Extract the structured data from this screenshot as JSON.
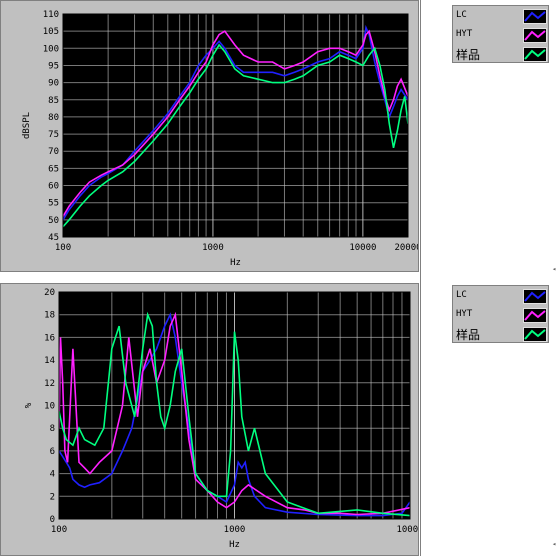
{
  "colors": {
    "lc": "#2020ff",
    "hyt": "#ff20ff",
    "sample": "#00ff80",
    "plot_bg": "#000000",
    "grid": "#c8c8c8",
    "panel": "#c0c0c0"
  },
  "legend_top": [
    {
      "label": "LC",
      "color": "#2020ff",
      "icon": "line-swatch-icon"
    },
    {
      "label": "HYT",
      "color": "#ff20ff",
      "icon": "line-swatch-icon"
    },
    {
      "label": "样品",
      "color": "#00ff80",
      "icon": "line-swatch-icon"
    }
  ],
  "legend_bottom": [
    {
      "label": "LC",
      "color": "#2020ff",
      "icon": "line-swatch-icon"
    },
    {
      "label": "HYT",
      "color": "#ff20ff",
      "icon": "line-swatch-icon"
    },
    {
      "label": "样品",
      "color": "#00ff80",
      "icon": "line-swatch-icon"
    }
  ],
  "chart_data": [
    {
      "type": "line",
      "xlabel": "Hz",
      "ylabel": "dBSPL",
      "xscale": "log",
      "xlim": [
        100,
        20000
      ],
      "ylim": [
        45,
        110
      ],
      "x_ticks": [
        "100",
        "1000",
        "10000",
        "20000"
      ],
      "y_ticks": [
        "45",
        "50",
        "55",
        "60",
        "65",
        "70",
        "75",
        "80",
        "85",
        "90",
        "95",
        "100",
        "105",
        "110"
      ],
      "grid": true,
      "legend": "right",
      "series": [
        {
          "name": "LC",
          "color": "#2020ff",
          "x": [
            100,
            110,
            130,
            150,
            180,
            200,
            250,
            300,
            400,
            500,
            600,
            700,
            800,
            900,
            1000,
            1100,
            1200,
            1400,
            1600,
            2000,
            2500,
            3000,
            3500,
            4000,
            5000,
            6000,
            7000,
            8000,
            9000,
            10000,
            10500,
            11000,
            12000,
            13000,
            14000,
            15000,
            16000,
            17000,
            18000,
            20000
          ],
          "y": [
            50,
            53,
            57,
            60,
            62.5,
            63.5,
            66,
            70,
            76,
            81,
            86,
            90,
            95,
            98,
            100,
            102,
            100,
            95,
            93,
            93,
            93,
            92,
            93,
            94,
            96,
            97,
            99,
            98,
            97,
            100,
            106,
            104,
            96,
            90,
            85,
            80,
            83,
            86,
            88,
            85
          ]
        },
        {
          "name": "HYT",
          "color": "#ff20ff",
          "x": [
            100,
            110,
            130,
            150,
            180,
            200,
            250,
            300,
            400,
            500,
            600,
            700,
            800,
            900,
            1000,
            1100,
            1200,
            1400,
            1600,
            2000,
            2500,
            3000,
            3500,
            4000,
            5000,
            6000,
            7000,
            8000,
            9000,
            10000,
            10500,
            11000,
            12000,
            13000,
            14000,
            15000,
            16000,
            17000,
            18000,
            20000
          ],
          "y": [
            51,
            54,
            58,
            61,
            63,
            64,
            66,
            69,
            75,
            80,
            85,
            89,
            93,
            96,
            101,
            104,
            105,
            101,
            98,
            96,
            96,
            94,
            95,
            96,
            99,
            100,
            100,
            99,
            98,
            101,
            104,
            105,
            99,
            92,
            86,
            82,
            85,
            89,
            91,
            86
          ]
        },
        {
          "name": "样品",
          "color": "#00ff80",
          "x": [
            100,
            110,
            130,
            150,
            180,
            200,
            250,
            300,
            400,
            500,
            600,
            700,
            800,
            900,
            1000,
            1100,
            1200,
            1400,
            1600,
            2000,
            2500,
            3000,
            3500,
            4000,
            5000,
            6000,
            7000,
            8000,
            9000,
            10000,
            11000,
            12000,
            13000,
            14000,
            15000,
            16000,
            17000,
            18000,
            19000,
            20000
          ],
          "y": [
            48,
            50,
            54,
            57,
            60,
            61.5,
            64,
            67,
            73,
            78,
            83,
            87,
            91,
            94,
            98,
            101,
            99,
            94,
            92,
            91,
            90,
            90,
            91,
            92,
            95,
            96,
            98,
            97,
            96,
            95,
            98,
            100,
            95,
            88,
            78,
            71,
            76,
            82,
            86,
            78
          ]
        }
      ]
    },
    {
      "type": "line",
      "xlabel": "Hz",
      "ylabel": "%",
      "xscale": "log",
      "xlim": [
        100,
        10000
      ],
      "ylim": [
        0,
        20
      ],
      "x_ticks": [
        "100",
        "1000",
        "10000"
      ],
      "y_ticks": [
        "0",
        "2",
        "4",
        "6",
        "8",
        "10",
        "12",
        "14",
        "16",
        "18",
        "20"
      ],
      "grid": true,
      "legend": "right",
      "series": [
        {
          "name": "LC",
          "color": "#2020ff",
          "x": [
            100,
            105,
            110,
            115,
            120,
            130,
            140,
            150,
            170,
            200,
            230,
            260,
            300,
            330,
            360,
            400,
            430,
            460,
            500,
            550,
            600,
            700,
            800,
            900,
            1000,
            1050,
            1100,
            1150,
            1200,
            1300,
            1500,
            2000,
            3000,
            5000,
            7000,
            9000,
            10000
          ],
          "y": [
            6,
            5.5,
            5,
            4.5,
            3.5,
            3,
            2.8,
            3,
            3.2,
            4,
            6,
            8,
            13,
            14,
            15,
            17,
            18,
            16,
            12,
            8,
            4,
            2.5,
            2,
            1.5,
            3,
            5,
            4.5,
            5,
            3.5,
            2,
            1,
            0.6,
            0.4,
            0.3,
            0.3,
            0.5,
            1.5
          ]
        },
        {
          "name": "HYT",
          "color": "#ff20ff",
          "x": [
            100,
            102,
            105,
            108,
            112,
            115,
            120,
            130,
            140,
            150,
            170,
            200,
            230,
            250,
            280,
            300,
            330,
            360,
            400,
            430,
            460,
            500,
            550,
            600,
            700,
            800,
            900,
            1000,
            1100,
            1200,
            1500,
            2000,
            2500,
            3000,
            4000,
            5000,
            7000,
            10000
          ],
          "y": [
            8,
            16,
            12,
            6,
            5,
            9,
            15,
            5,
            4.5,
            4,
            5,
            6,
            10,
            16,
            9,
            13,
            15,
            12,
            14,
            17,
            18,
            13,
            7,
            3.5,
            2.5,
            1.5,
            1,
            1.5,
            2.5,
            3,
            2,
            1,
            0.8,
            0.5,
            0.5,
            0.4,
            0.5,
            1
          ]
        },
        {
          "name": "样品",
          "color": "#00ff80",
          "x": [
            100,
            105,
            110,
            120,
            130,
            140,
            160,
            180,
            200,
            220,
            240,
            270,
            300,
            320,
            340,
            360,
            380,
            400,
            430,
            460,
            500,
            550,
            600,
            700,
            800,
            900,
            950,
            1000,
            1050,
            1100,
            1200,
            1300,
            1500,
            2000,
            3000,
            5000,
            7000,
            10000
          ],
          "y": [
            9.5,
            8,
            7,
            6.5,
            8,
            7,
            6.5,
            8,
            15,
            17,
            12,
            9,
            15,
            18,
            17,
            12,
            9,
            8,
            10,
            13,
            15,
            9,
            4,
            2.5,
            2,
            2,
            6,
            16.5,
            14,
            9,
            6,
            8,
            4,
            1.5,
            0.5,
            0.8,
            0.5,
            0.3
          ]
        }
      ]
    }
  ]
}
